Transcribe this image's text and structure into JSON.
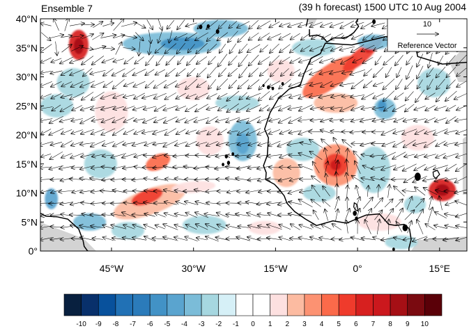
{
  "header": {
    "left_title": "Ensemble 7",
    "right_title": "(39 h forecast) 1500 UTC 10 Aug 2004"
  },
  "reference_vector": {
    "magnitude_label": "10",
    "caption": "Reference Vector"
  },
  "axes": {
    "y_ticks": [
      {
        "lat": 40,
        "label": "40°N"
      },
      {
        "lat": 35,
        "label": "35°N"
      },
      {
        "lat": 30,
        "label": "30°N"
      },
      {
        "lat": 25,
        "label": "25°N"
      },
      {
        "lat": 20,
        "label": "20°N"
      },
      {
        "lat": 15,
        "label": "15°N"
      },
      {
        "lat": 10,
        "label": "10°N"
      },
      {
        "lat": 5,
        "label": "5°N"
      },
      {
        "lat": 0,
        "label": "0°"
      }
    ],
    "x_ticks": [
      {
        "lon": -45,
        "label": "45°W"
      },
      {
        "lon": -30,
        "label": "30°W"
      },
      {
        "lon": -15,
        "label": "15°W"
      },
      {
        "lon": 0,
        "label": "0°"
      },
      {
        "lon": 15,
        "label": "15°E"
      }
    ],
    "lon_range": [
      -58,
      20
    ],
    "lat_range": [
      0,
      40
    ]
  },
  "colorbar": {
    "labels": [
      "-10",
      "-9",
      "-8",
      "-7",
      "-6",
      "-5",
      "-4",
      "-3",
      "-2",
      "-1",
      "0",
      "1",
      "2",
      "3",
      "4",
      "5",
      "6",
      "7",
      "8",
      "9",
      "10"
    ],
    "colors": [
      "#08203f",
      "#08306b",
      "#08519c",
      "#2171b5",
      "#2b7bba",
      "#4292c6",
      "#5aa4cf",
      "#7bbcd8",
      "#a6d7e0",
      "#d6f0f7",
      "#ffffff",
      "#ffffff",
      "#fde0e0",
      "#fcbba1",
      "#fc9272",
      "#fb6a4a",
      "#ef3b2c",
      "#d7201f",
      "#cb181d",
      "#a50f15",
      "#7a0a10",
      "#5a0008"
    ]
  },
  "map_colors": {
    "land_mask": "#d3d3d3",
    "coast": "#000000"
  },
  "anomalies": [
    {
      "lon": -51,
      "lat": 35.5,
      "rx": 1.8,
      "ry": 2.6,
      "v": 7
    },
    {
      "lon": -51,
      "lat": 35.3,
      "rx": 0.9,
      "ry": 1.4,
      "v": 9
    },
    {
      "lon": -34,
      "lat": 35.7,
      "rx": 9,
      "ry": 2.0,
      "v": -3
    },
    {
      "lon": -32,
      "lat": 35.7,
      "rx": 4,
      "ry": 1.1,
      "v": -5
    },
    {
      "lon": -25,
      "lat": 38.3,
      "rx": 5,
      "ry": 1.5,
      "v": -3
    },
    {
      "lon": -52,
      "lat": 29,
      "rx": 3,
      "ry": 2.5,
      "v": -2
    },
    {
      "lon": -45,
      "lat": 24,
      "rx": 3,
      "ry": 3.5,
      "v": 2
    },
    {
      "lon": -55,
      "lat": 25,
      "rx": 3,
      "ry": 2,
      "v": -2
    },
    {
      "lon": -22,
      "lat": 25.5,
      "rx": 4,
      "ry": 1.3,
      "v": -2
    },
    {
      "lon": -21,
      "lat": 19,
      "rx": 2.6,
      "ry": 3.5,
      "v": -3
    },
    {
      "lon": -21,
      "lat": 18.5,
      "rx": 1.2,
      "ry": 1.8,
      "v": -4
    },
    {
      "lon": -27,
      "lat": 19,
      "rx": 2.5,
      "ry": 2.5,
      "v": 2
    },
    {
      "lon": -36.5,
      "lat": 15.3,
      "rx": 2.4,
      "ry": 1.3,
      "v": 5,
      "rot": -25
    },
    {
      "lon": -38,
      "lat": 8.5,
      "rx": 7,
      "ry": 2.2,
      "v": 3,
      "rot": -20
    },
    {
      "lon": -38.5,
      "lat": 9.3,
      "rx": 3,
      "ry": 1.2,
      "v": 6,
      "rot": -20
    },
    {
      "lon": -30,
      "lat": 11,
      "rx": 4,
      "ry": 1,
      "v": 2,
      "rot": -5
    },
    {
      "lon": -56,
      "lat": 9,
      "rx": 1.2,
      "ry": 1.8,
      "v": -4
    },
    {
      "lon": -49,
      "lat": 5,
      "rx": 3,
      "ry": 1.5,
      "v": -3
    },
    {
      "lon": -42,
      "lat": 3.5,
      "rx": 3,
      "ry": 1.5,
      "v": -2
    },
    {
      "lon": -28,
      "lat": 4.5,
      "rx": 4,
      "ry": 1.6,
      "v": -2
    },
    {
      "lon": -17,
      "lat": 4,
      "rx": 3,
      "ry": 1.2,
      "v": 2
    },
    {
      "lon": -5,
      "lat": 30,
      "rx": 6,
      "ry": 2,
      "v": 5,
      "rot": -35
    },
    {
      "lon": 0.5,
      "lat": 33.5,
      "rx": 4,
      "ry": 1.2,
      "v": 6,
      "rot": -40
    },
    {
      "lon": 3,
      "lat": 35.5,
      "rx": 2,
      "ry": 0.8,
      "v": 8,
      "rot": -40
    },
    {
      "lon": -8,
      "lat": 35,
      "rx": 4,
      "ry": 1.5,
      "v": -2
    },
    {
      "lon": 3,
      "lat": 36,
      "rx": 3,
      "ry": 1.3,
      "v": -3
    },
    {
      "lon": -4,
      "lat": 14.8,
      "rx": 4,
      "ry": 3.6,
      "v": 4
    },
    {
      "lon": -4,
      "lat": 14.8,
      "rx": 2.2,
      "ry": 2.0,
      "v": 6
    },
    {
      "lon": -4,
      "lat": 14.8,
      "rx": 1.0,
      "ry": 0.9,
      "v": 8
    },
    {
      "lon": -13,
      "lat": 13.5,
      "rx": 2.5,
      "ry": 2.5,
      "v": 3
    },
    {
      "lon": -10,
      "lat": 17.5,
      "rx": 3,
      "ry": 2,
      "v": -2
    },
    {
      "lon": -7,
      "lat": 10,
      "rx": 3,
      "ry": 1.5,
      "v": -2
    },
    {
      "lon": 3,
      "lat": 14,
      "rx": 3,
      "ry": 4,
      "v": -2
    },
    {
      "lon": 5,
      "lat": 24.5,
      "rx": 2,
      "ry": 1.8,
      "v": -3
    },
    {
      "lon": 4.5,
      "lat": 25,
      "rx": 0.8,
      "ry": 1,
      "v": -5
    },
    {
      "lon": -4,
      "lat": 25.5,
      "rx": 4,
      "ry": 1.7,
      "v": 3
    },
    {
      "lon": 15.5,
      "lat": 10.5,
      "rx": 2.5,
      "ry": 1.9,
      "v": 7
    },
    {
      "lon": 15.5,
      "lat": 10.5,
      "rx": 1.3,
      "ry": 1.0,
      "v": 9
    },
    {
      "lon": 10.5,
      "lat": 8,
      "rx": 2,
      "ry": 1.5,
      "v": -2
    },
    {
      "lon": 11,
      "lat": 19.5,
      "rx": 3,
      "ry": 2.2,
      "v": 2
    },
    {
      "lon": 14,
      "lat": 29,
      "rx": 3,
      "ry": 2.5,
      "v": -2
    },
    {
      "lon": 4,
      "lat": 5,
      "rx": 4,
      "ry": 1.5,
      "v": 2
    },
    {
      "lon": -30,
      "lat": 28,
      "rx": 3,
      "ry": 2,
      "v": 2
    },
    {
      "lon": -47,
      "lat": 15,
      "rx": 3,
      "ry": 2.5,
      "v": -2
    },
    {
      "lon": -14,
      "lat": 31,
      "rx": 2.5,
      "ry": 2,
      "v": 2
    },
    {
      "lon": 8,
      "lat": 1.5,
      "rx": 3,
      "ry": 1.2,
      "v": -2
    }
  ],
  "flow_regions": [
    {
      "lon": -46,
      "lat": 37,
      "rx": 14,
      "ry": 4,
      "u": 0.9,
      "v": 0.35
    },
    {
      "lon": -25,
      "lat": 31,
      "rx": 16,
      "ry": 8,
      "u": -0.55,
      "v": -0.75
    },
    {
      "lon": -40,
      "lat": 22,
      "rx": 22,
      "ry": 8,
      "u": -0.9,
      "v": -0.35
    },
    {
      "lon": -34,
      "lat": 12,
      "rx": 22,
      "ry": 5,
      "u": -0.9,
      "v": 0.1
    },
    {
      "lon": -30,
      "lat": 4,
      "rx": 28,
      "ry": 4,
      "u": -0.95,
      "v": 0.35
    },
    {
      "lon": -4,
      "lat": 22,
      "rx": 10,
      "ry": 8,
      "u": -0.95,
      "v": -0.25
    },
    {
      "lon": -4,
      "lat": 15,
      "rx": 5,
      "ry": 5,
      "u": 0.2,
      "v": 0.9
    },
    {
      "lon": 5,
      "lat": 7,
      "rx": 12,
      "ry": 4,
      "u": 0.6,
      "v": 0.7
    },
    {
      "lon": 12,
      "lat": 32,
      "rx": 8,
      "ry": 6,
      "u": -0.4,
      "v": -0.9
    }
  ],
  "islands": [
    {
      "lon": -16.3,
      "lat": 28.2,
      "r": 0.35
    },
    {
      "lon": -15.5,
      "lat": 28.0,
      "r": 0.3
    },
    {
      "lon": -13.7,
      "lat": 28.8,
      "r": 0.3
    },
    {
      "lon": -17.2,
      "lat": 28.5,
      "r": 0.25
    },
    {
      "lon": -24.0,
      "lat": 16.3,
      "r": 0.35
    },
    {
      "lon": -23.6,
      "lat": 15.2,
      "r": 0.35
    },
    {
      "lon": -24.6,
      "lat": 14.9,
      "r": 0.3
    },
    {
      "lon": -22.8,
      "lat": 16.7,
      "r": 0.3
    },
    {
      "lon": -28.7,
      "lat": 38.6,
      "r": 0.4
    },
    {
      "lon": -27.3,
      "lat": 38.7,
      "r": 0.35
    },
    {
      "lon": -25.6,
      "lat": 37.8,
      "r": 0.4
    },
    {
      "lon": 9.0,
      "lat": 39.5,
      "r": 0.7
    },
    {
      "lon": 9.0,
      "lat": 41.5,
      "r": 0.5
    },
    {
      "lon": 8.7,
      "lat": 4.0,
      "r": 0.6
    },
    {
      "lon": 6.6,
      "lat": 0.3,
      "r": 0.3
    },
    {
      "lon": 3.0,
      "lat": 39.5,
      "r": 0.4
    },
    {
      "lon": 11.0,
      "lat": 12.8,
      "r": 0.7
    },
    {
      "lon": -0.5,
      "lat": 6.5,
      "r": 0.45
    },
    {
      "lon": -0.2,
      "lat": 5.6,
      "r": 0.35
    }
  ]
}
